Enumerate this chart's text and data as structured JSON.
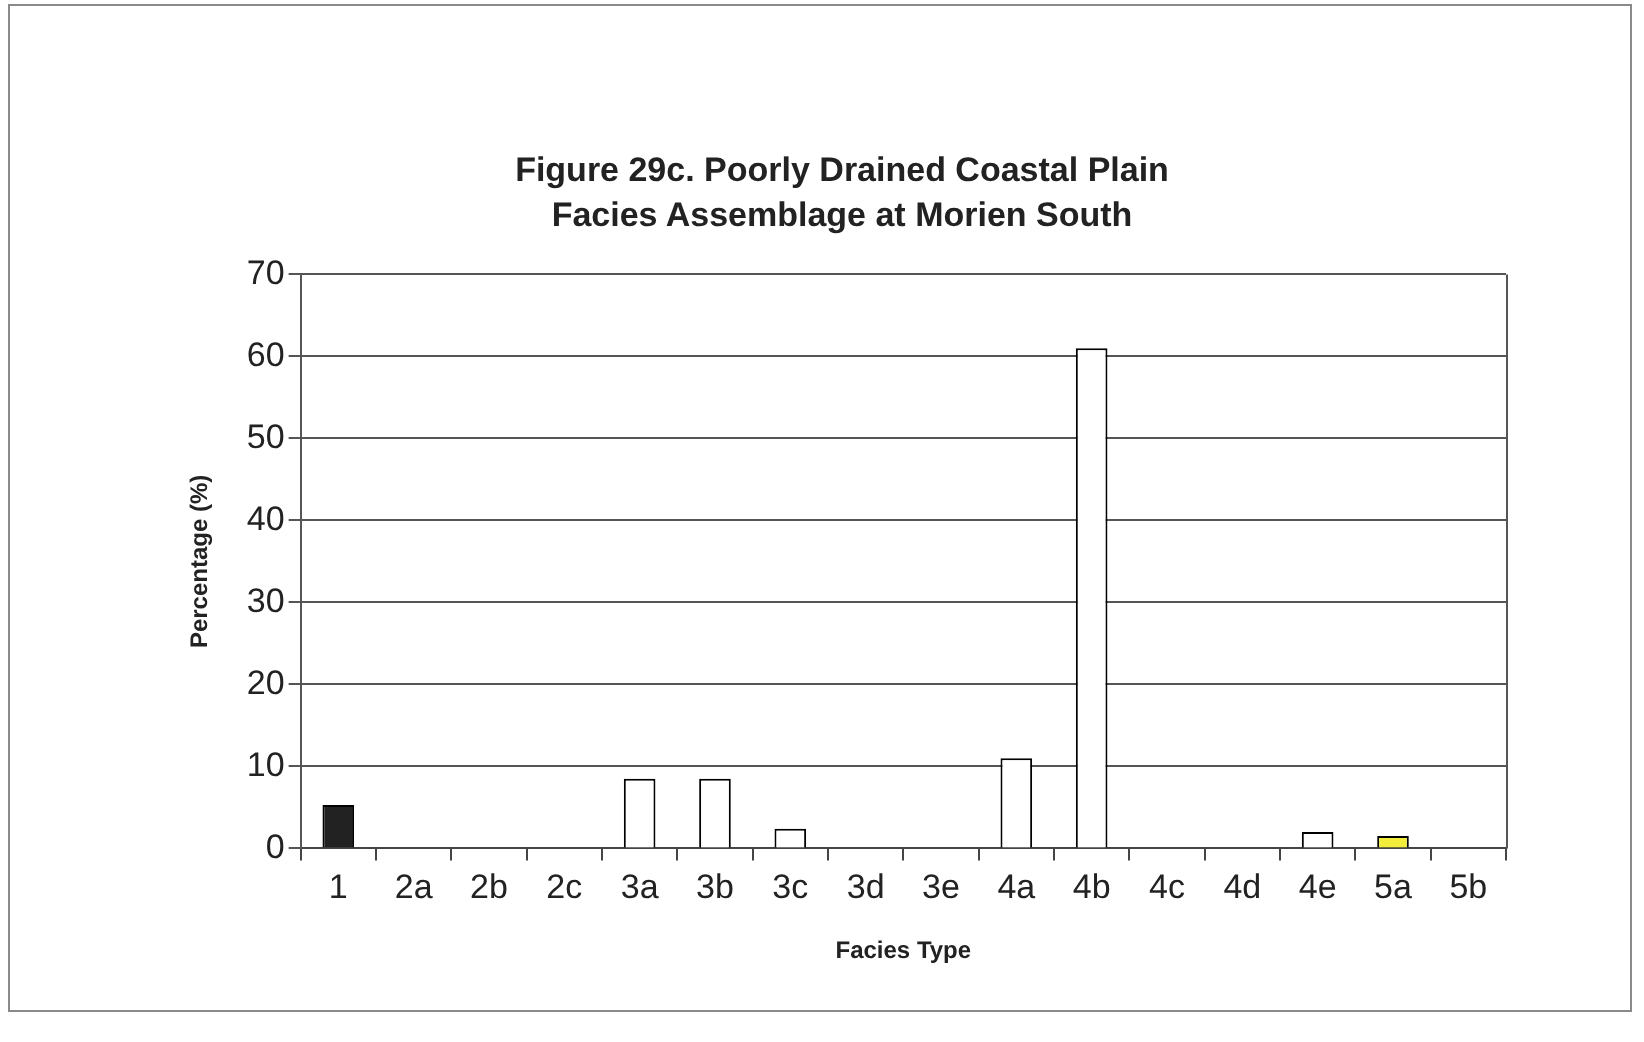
{
  "chart_data": {
    "type": "bar",
    "title": "Figure 29c. Poorly Drained Coastal Plain\nFacies Assemblage at Morien South",
    "xlabel": "Facies Type",
    "ylabel": "Percentage (%)",
    "categories": [
      "1",
      "2a",
      "2b",
      "2c",
      "3a",
      "3b",
      "3c",
      "3d",
      "3e",
      "4a",
      "4b",
      "4c",
      "4d",
      "4e",
      "5a",
      "5b"
    ],
    "values": [
      5.3,
      0,
      0,
      0,
      8.5,
      8.5,
      2.4,
      0,
      0,
      11,
      61,
      0,
      0,
      2,
      1.5,
      0
    ],
    "colors": [
      "#222222",
      "#3a6fc0",
      "#e8e8e8",
      "#2f8f6a",
      "#ffffff",
      "#ffffff",
      "#ffffff",
      "#c8283c",
      "#c8283c",
      "#ffffff",
      "#ffffff",
      "#c8283c",
      "#c8283c",
      "#ffffff",
      "#f2ec3a",
      "#b8b23a"
    ],
    "ylim": [
      0,
      70
    ],
    "yticks": [
      0,
      10,
      20,
      30,
      40,
      50,
      60,
      70
    ],
    "grid": "y",
    "legend": false
  }
}
